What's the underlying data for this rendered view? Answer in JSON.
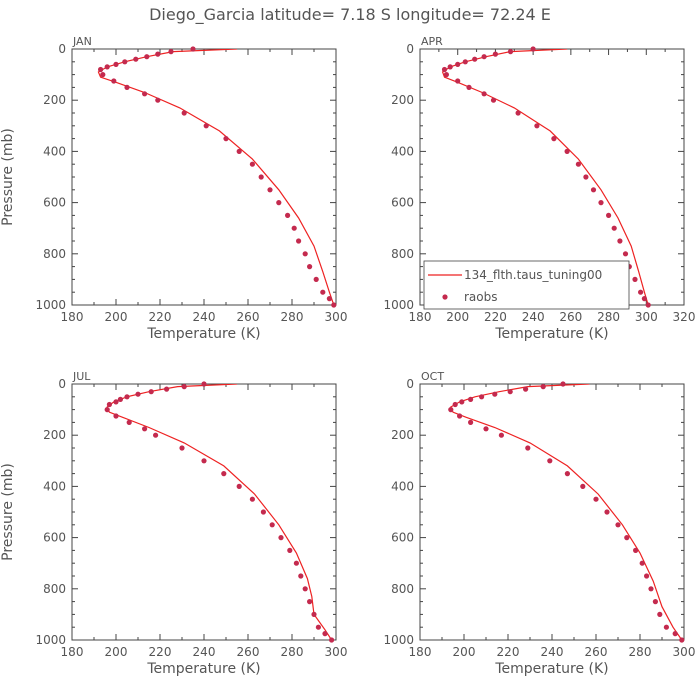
{
  "title": "Diego_Garcia   latitude=  7.18 S  longitude=  72.24 E",
  "legend": {
    "model_label": "134_flth.taus_tuning00",
    "obs_label": "raobs",
    "placement": "lower-right of APR panel"
  },
  "colors": {
    "model": "#ee2222",
    "obs": "#c42a4e",
    "axes": "#444444",
    "text": "#555555"
  },
  "chart_data": [
    {
      "type": "line",
      "panel": "JAN",
      "xlabel": "Temperature  (K)",
      "ylabel": "Pressure  (mb)",
      "xlim": [
        180,
        300
      ],
      "ylim": [
        1000,
        0
      ],
      "xticks": [
        "180",
        "200",
        "220",
        "240",
        "260",
        "280",
        "300"
      ],
      "yticks": [
        "0",
        "200",
        "400",
        "600",
        "800",
        "1000"
      ],
      "series": [
        {
          "name": "134_flth.taus_tuning00",
          "kind": "line",
          "x": [
            255,
            226,
            214,
            204,
            196,
            192,
            193,
            200,
            213,
            229,
            247,
            262,
            274,
            283,
            290,
            294,
            297,
            299
          ],
          "y": [
            0,
            10,
            30,
            50,
            70,
            90,
            110,
            130,
            170,
            230,
            320,
            430,
            550,
            660,
            770,
            870,
            950,
            1000
          ]
        },
        {
          "name": "raobs",
          "kind": "scatter",
          "x": [
            235,
            225,
            219,
            214,
            209,
            204,
            200,
            196,
            193,
            194,
            199,
            205,
            213,
            219,
            231,
            241,
            250,
            256,
            262,
            266,
            270,
            274,
            278,
            281,
            283,
            286,
            288,
            291,
            294,
            297,
            299
          ],
          "y": [
            0,
            10,
            20,
            30,
            40,
            50,
            60,
            70,
            80,
            100,
            125,
            150,
            175,
            200,
            250,
            300,
            350,
            400,
            450,
            500,
            550,
            600,
            650,
            700,
            750,
            800,
            850,
            900,
            950,
            975,
            1000
          ]
        }
      ]
    },
    {
      "type": "line",
      "panel": "APR",
      "xlabel": "Temperature  (K)",
      "ylabel": "",
      "xlim": [
        180,
        320
      ],
      "ylim": [
        1000,
        0
      ],
      "xticks": [
        "180",
        "200",
        "220",
        "240",
        "260",
        "280",
        "300",
        "320"
      ],
      "yticks": [
        "0",
        "200",
        "400",
        "600",
        "800",
        "1000"
      ],
      "series": [
        {
          "name": "134_flth.taus_tuning00",
          "kind": "line",
          "x": [
            258,
            228,
            215,
            204,
            196,
            192,
            193,
            200,
            213,
            230,
            249,
            264,
            276,
            285,
            292,
            296,
            299,
            301
          ],
          "y": [
            0,
            10,
            30,
            50,
            70,
            90,
            110,
            130,
            170,
            230,
            320,
            430,
            550,
            660,
            770,
            870,
            950,
            1000
          ]
        },
        {
          "name": "raobs",
          "kind": "scatter",
          "x": [
            240,
            228,
            220,
            214,
            209,
            204,
            200,
            196,
            193,
            194,
            200,
            206,
            214,
            219,
            232,
            242,
            251,
            258,
            264,
            268,
            272,
            276,
            280,
            283,
            286,
            289,
            291,
            294,
            297,
            299,
            301
          ],
          "y": [
            0,
            10,
            20,
            30,
            40,
            50,
            60,
            70,
            80,
            100,
            125,
            150,
            175,
            200,
            250,
            300,
            350,
            400,
            450,
            500,
            550,
            600,
            650,
            700,
            750,
            800,
            850,
            900,
            950,
            975,
            1000
          ]
        }
      ]
    },
    {
      "type": "line",
      "panel": "JUL",
      "xlabel": "Temperature  (K)",
      "ylabel": "Pressure  (mb)",
      "xlim": [
        180,
        300
      ],
      "ylim": [
        1000,
        0
      ],
      "xticks": [
        "180",
        "200",
        "220",
        "240",
        "260",
        "280",
        "300"
      ],
      "yticks": [
        "0",
        "200",
        "400",
        "600",
        "800",
        "1000"
      ],
      "series": [
        {
          "name": "134_flth.taus_tuning00",
          "kind": "line",
          "x": [
            255,
            228,
            215,
            205,
            199,
            196,
            197,
            203,
            215,
            231,
            249,
            263,
            274,
            282,
            287,
            289,
            290,
            295,
            298
          ],
          "y": [
            0,
            10,
            30,
            50,
            70,
            90,
            110,
            130,
            170,
            230,
            320,
            430,
            550,
            660,
            760,
            830,
            900,
            960,
            1000
          ]
        },
        {
          "name": "raobs",
          "kind": "scatter",
          "x": [
            240,
            231,
            223,
            216,
            210,
            205,
            202,
            200,
            197,
            196,
            200,
            206,
            213,
            218,
            230,
            240,
            249,
            256,
            262,
            267,
            271,
            275,
            279,
            282,
            284,
            286,
            288,
            290,
            292,
            295,
            298
          ],
          "y": [
            0,
            10,
            20,
            30,
            40,
            50,
            60,
            70,
            80,
            100,
            125,
            150,
            175,
            200,
            250,
            300,
            350,
            400,
            450,
            500,
            550,
            600,
            650,
            700,
            750,
            800,
            850,
            900,
            950,
            975,
            1000
          ]
        }
      ]
    },
    {
      "type": "line",
      "panel": "OCT",
      "xlabel": "Temperature  (K)",
      "ylabel": "",
      "xlim": [
        180,
        300
      ],
      "ylim": [
        1000,
        0
      ],
      "xticks": [
        "180",
        "200",
        "220",
        "240",
        "260",
        "280",
        "300"
      ],
      "yticks": [
        "0",
        "200",
        "400",
        "600",
        "800",
        "1000"
      ],
      "series": [
        {
          "name": "134_flth.taus_tuning00",
          "kind": "line",
          "x": [
            257,
            229,
            216,
            205,
            198,
            194,
            195,
            201,
            214,
            230,
            247,
            261,
            272,
            280,
            286,
            290,
            295,
            299
          ],
          "y": [
            0,
            10,
            30,
            50,
            70,
            90,
            110,
            130,
            170,
            230,
            320,
            430,
            550,
            660,
            770,
            870,
            950,
            1000
          ]
        },
        {
          "name": "raobs",
          "kind": "scatter",
          "x": [
            245,
            236,
            228,
            221,
            214,
            208,
            203,
            199,
            196,
            194,
            198,
            203,
            210,
            217,
            229,
            239,
            247,
            254,
            260,
            265,
            270,
            274,
            278,
            281,
            283,
            285,
            287,
            289,
            292,
            296,
            299
          ],
          "y": [
            0,
            10,
            20,
            30,
            40,
            50,
            60,
            70,
            80,
            100,
            125,
            150,
            175,
            200,
            250,
            300,
            350,
            400,
            450,
            500,
            550,
            600,
            650,
            700,
            750,
            800,
            850,
            900,
            950,
            975,
            1000
          ]
        }
      ]
    }
  ]
}
